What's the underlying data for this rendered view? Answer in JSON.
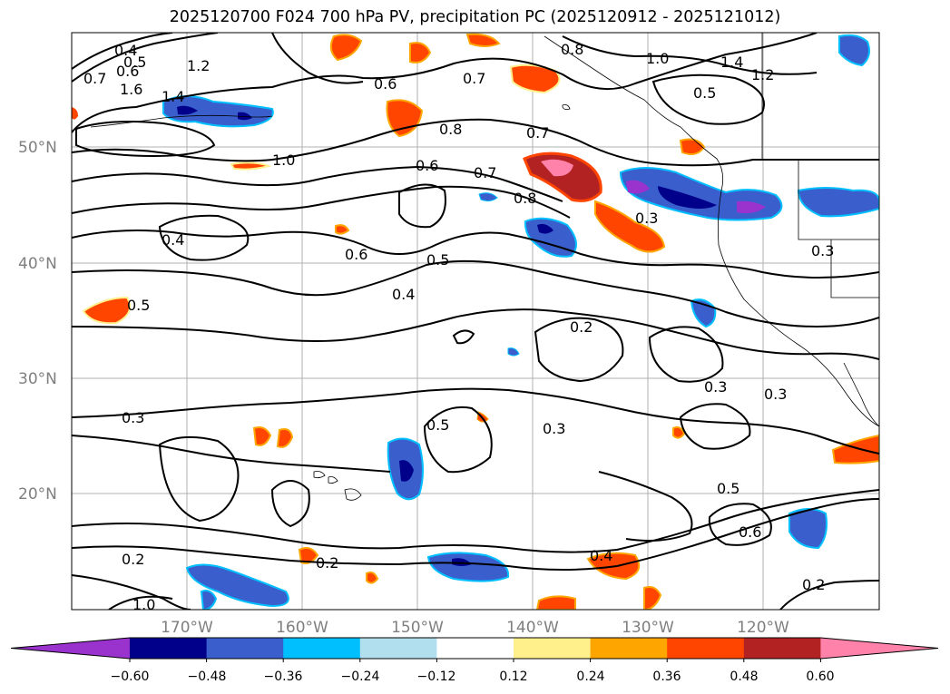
{
  "title": "2025120700 F024 700 hPa PV, precipitation PC (2025120912 - 2025121012)",
  "lat_labels": [
    "50°N",
    "40°N",
    "30°N",
    "20°N"
  ],
  "lon_labels": [
    "170°W",
    "160°W",
    "150°W",
    "140°W",
    "130°W",
    "120°W"
  ],
  "contour_labels": [
    "0.4",
    "0.5",
    "0.6",
    "0.7",
    "1.6",
    "1.2",
    "1.4",
    "1.0",
    "0.6",
    "0.7",
    "0.8",
    "1.0",
    "1.4",
    "1.2",
    "0.5",
    "0.8",
    "0.7",
    "0.6",
    "0.7",
    "0.8",
    "0.3",
    "0.4",
    "0.6",
    "0.5",
    "0.4",
    "0.5",
    "0.3",
    "0.2",
    "0.5",
    "0.3",
    "0.3",
    "0.3",
    "0.5",
    "0.6",
    "0.2",
    "0.2",
    "0.4",
    "0.2",
    "0.3",
    "1.0"
  ],
  "colorbar": {
    "ticks": [
      "−0.60",
      "−0.48",
      "−0.36",
      "−0.24",
      "−0.12",
      "0.12",
      "0.24",
      "0.36",
      "0.48",
      "0.60"
    ],
    "colors": [
      "#9a32cd",
      "#00008b",
      "#3a5fcd",
      "#00bfff",
      "#b2dfee",
      "#ffffff",
      "#fff08c",
      "#ffa500",
      "#ff4500",
      "#b22222",
      "#ff82ab"
    ]
  }
}
